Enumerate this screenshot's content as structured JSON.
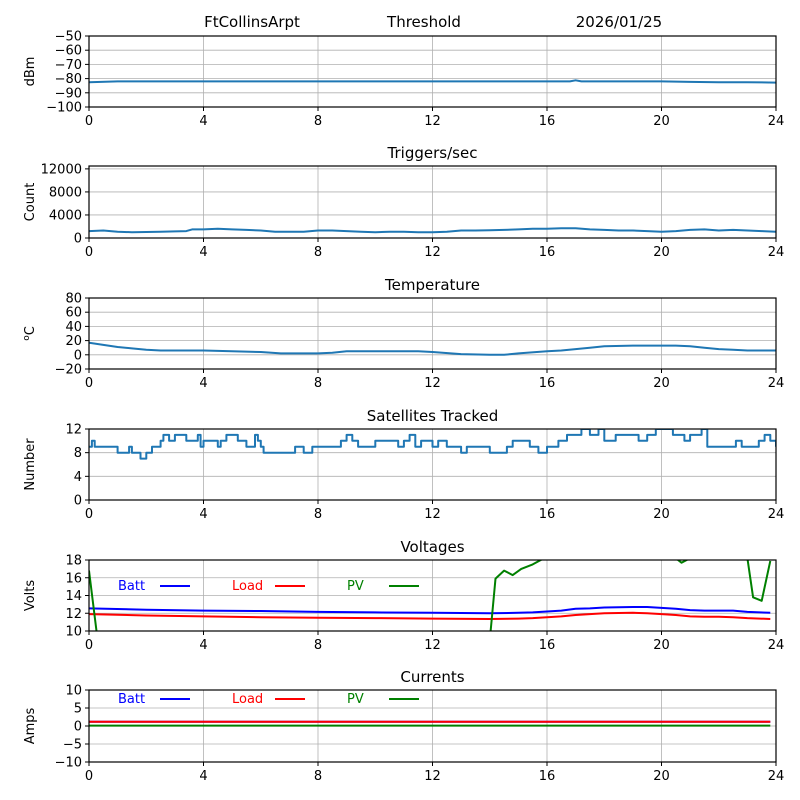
{
  "header": {
    "station": "FtCollinsArpt",
    "mode": "Threshold",
    "date": "2026/01/25"
  },
  "chart_data": [
    {
      "id": "threshold",
      "type": "line",
      "title": "",
      "xlabel": "",
      "ylabel": "dBm",
      "xlim": [
        0,
        24
      ],
      "ylim": [
        -100,
        -50
      ],
      "xticks": [
        0,
        4,
        8,
        12,
        16,
        20,
        24
      ],
      "yticks": [
        -100,
        -90,
        -80,
        -70,
        -60,
        -50
      ],
      "ytick_labels": [
        "−100",
        "−90",
        "−80",
        "−70",
        "−60",
        "−50"
      ],
      "grid": true,
      "series": [
        {
          "name": "Threshold",
          "color": "#1f77b4",
          "x": [
            0,
            1,
            2,
            3,
            4,
            5,
            6,
            7,
            8,
            9,
            10,
            11,
            12,
            13,
            14,
            15,
            16,
            16.8,
            17,
            17.2,
            18,
            19,
            20,
            21,
            22,
            23,
            24
          ],
          "values": [
            -82.5,
            -82,
            -82,
            -82,
            -82,
            -82,
            -82,
            -82,
            -82,
            -82,
            -82,
            -82,
            -82,
            -82,
            -82,
            -82,
            -82,
            -82,
            -81.2,
            -82,
            -82,
            -82,
            -82,
            -82.3,
            -82.5,
            -82.5,
            -82.8
          ]
        }
      ]
    },
    {
      "id": "triggers",
      "type": "line",
      "title": "Triggers/sec",
      "xlabel": "",
      "ylabel": "Count",
      "xlim": [
        0,
        24
      ],
      "ylim": [
        0,
        12500
      ],
      "xticks": [
        0,
        4,
        8,
        12,
        16,
        20,
        24
      ],
      "yticks": [
        0,
        4000,
        8000,
        12000
      ],
      "ytick_labels": [
        "0",
        "4000",
        "8000",
        "12000"
      ],
      "grid": true,
      "series": [
        {
          "name": "Triggers",
          "color": "#1f77b4",
          "x": [
            0,
            0.5,
            1,
            1.5,
            2,
            2.5,
            3,
            3.4,
            3.6,
            4,
            4.5,
            5,
            5.5,
            6,
            6.5,
            7,
            7.5,
            8,
            8.5,
            9,
            9.5,
            10,
            10.5,
            11,
            11.5,
            12,
            12.5,
            13,
            13.5,
            14,
            14.5,
            15,
            15.5,
            16,
            16.5,
            17,
            17.5,
            18,
            18.5,
            19,
            19.5,
            20,
            20.5,
            21,
            21.5,
            22,
            22.5,
            23,
            23.5,
            24
          ],
          "values": [
            1200,
            1300,
            1100,
            1000,
            1050,
            1100,
            1150,
            1200,
            1500,
            1500,
            1600,
            1500,
            1400,
            1300,
            1100,
            1100,
            1100,
            1300,
            1300,
            1200,
            1100,
            1000,
            1100,
            1100,
            1000,
            1000,
            1100,
            1300,
            1300,
            1350,
            1400,
            1500,
            1600,
            1600,
            1700,
            1700,
            1500,
            1400,
            1300,
            1300,
            1200,
            1100,
            1200,
            1400,
            1500,
            1300,
            1400,
            1300,
            1200,
            1100
          ]
        }
      ]
    },
    {
      "id": "temperature",
      "type": "line",
      "title": "Temperature",
      "xlabel": "",
      "ylabel": "oC",
      "xlim": [
        0,
        24
      ],
      "ylim": [
        -20,
        80
      ],
      "xticks": [
        0,
        4,
        8,
        12,
        16,
        20,
        24
      ],
      "yticks": [
        -20,
        0,
        20,
        40,
        60,
        80
      ],
      "ytick_labels": [
        "−20",
        "0",
        "20",
        "40",
        "60",
        "80"
      ],
      "grid": true,
      "series": [
        {
          "name": "Temperature",
          "color": "#1f77b4",
          "x": [
            0,
            0.5,
            1,
            1.5,
            2,
            2.5,
            3,
            4,
            5,
            6,
            6.7,
            7,
            8,
            8.5,
            9,
            10,
            11,
            11.5,
            12,
            13,
            14,
            14.5,
            15,
            16,
            16.5,
            17,
            17.5,
            18,
            19,
            20,
            20.5,
            21,
            21.5,
            22,
            22.5,
            23,
            24
          ],
          "values": [
            17,
            14,
            11,
            9,
            7,
            6,
            6,
            6,
            5,
            4,
            2,
            2,
            2,
            3,
            5,
            5,
            5,
            5,
            4,
            1,
            0,
            0,
            2,
            5,
            6,
            8,
            10,
            12,
            13,
            13,
            13,
            12,
            10,
            8,
            7,
            6,
            6
          ]
        }
      ]
    },
    {
      "id": "satellites",
      "type": "line",
      "title": "Satellites Tracked",
      "xlabel": "",
      "ylabel": "Number",
      "xlim": [
        0,
        24
      ],
      "ylim": [
        0,
        12
      ],
      "xticks": [
        0,
        4,
        8,
        12,
        16,
        20,
        24
      ],
      "yticks": [
        0,
        4,
        8,
        12
      ],
      "ytick_labels": [
        "0",
        "4",
        "8",
        "12"
      ],
      "grid": true,
      "series": [
        {
          "name": "Satellites",
          "color": "#1f77b4",
          "step": true,
          "x": [
            0,
            0.1,
            0.2,
            0.4,
            1.0,
            1.4,
            1.5,
            1.6,
            1.8,
            2.0,
            2.2,
            2.5,
            2.6,
            2.8,
            3.0,
            3.4,
            3.8,
            3.9,
            4.0,
            4.5,
            4.6,
            4.8,
            5.2,
            5.5,
            5.8,
            5.9,
            6.0,
            6.1,
            6.2,
            7.0,
            7.2,
            7.5,
            7.8,
            8.4,
            8.8,
            9.0,
            9.2,
            9.4,
            9.7,
            10.0,
            10.4,
            10.8,
            11.0,
            11.2,
            11.4,
            11.6,
            12.0,
            12.2,
            12.5,
            13.0,
            13.2,
            13.6,
            14.0,
            14.6,
            14.8,
            15.0,
            15.4,
            15.7,
            16.0,
            16.4,
            16.7,
            17.0,
            17.2,
            17.5,
            17.8,
            18.0,
            18.4,
            19.2,
            19.5,
            19.8,
            20.0,
            20.4,
            20.8,
            21.0,
            21.4,
            21.6,
            22.0,
            22.6,
            22.8,
            23.0,
            23.4,
            23.6,
            23.8,
            24
          ],
          "values": [
            9,
            10,
            9,
            9,
            8,
            9,
            8,
            8,
            7,
            8,
            9,
            10,
            11,
            10,
            11,
            10,
            11,
            9,
            10,
            9,
            10,
            11,
            10,
            9,
            11,
            10,
            9,
            8,
            8,
            8,
            9,
            8,
            9,
            9,
            10,
            11,
            10,
            9,
            9,
            10,
            10,
            9,
            10,
            11,
            9,
            10,
            9,
            10,
            9,
            8,
            9,
            9,
            8,
            9,
            10,
            10,
            9,
            8,
            9,
            10,
            11,
            11,
            12,
            11,
            12,
            10,
            11,
            10,
            11,
            12,
            12,
            11,
            10,
            11,
            12,
            9,
            9,
            10,
            9,
            9,
            10,
            11,
            10,
            9
          ]
        }
      ]
    },
    {
      "id": "voltages",
      "type": "line",
      "title": "Voltages",
      "xlabel": "",
      "ylabel": "Volts",
      "xlim": [
        0,
        24
      ],
      "ylim": [
        10,
        18
      ],
      "xticks": [
        0,
        4,
        8,
        12,
        16,
        20,
        24
      ],
      "yticks": [
        10,
        12,
        14,
        16,
        18
      ],
      "ytick_labels": [
        "10",
        "12",
        "14",
        "16",
        "18"
      ],
      "grid": true,
      "legend": [
        {
          "label": "Batt",
          "color": "#0000ff"
        },
        {
          "label": "Load",
          "color": "#ff0000"
        },
        {
          "label": "PV",
          "color": "#008000"
        }
      ],
      "legend_placement": "top-inside",
      "series": [
        {
          "name": "Batt",
          "color": "#0000ff",
          "x": [
            0,
            2,
            4,
            6,
            8,
            10,
            12,
            14,
            15,
            15.5,
            16,
            16.5,
            17,
            17.5,
            18,
            19,
            19.5,
            20,
            20.5,
            21,
            21.5,
            22,
            22.5,
            23,
            23.8
          ],
          "values": [
            12.55,
            12.4,
            12.3,
            12.25,
            12.15,
            12.1,
            12.05,
            12.0,
            12.05,
            12.1,
            12.2,
            12.3,
            12.5,
            12.55,
            12.65,
            12.7,
            12.7,
            12.6,
            12.5,
            12.35,
            12.3,
            12.3,
            12.3,
            12.15,
            12.05
          ]
        },
        {
          "name": "Load",
          "color": "#ff0000",
          "x": [
            0,
            2,
            4,
            6,
            8,
            10,
            12,
            14,
            15,
            15.5,
            16,
            16.5,
            17,
            17.5,
            18,
            19,
            19.5,
            20,
            20.5,
            21,
            21.5,
            22,
            22.5,
            23,
            23.8
          ],
          "values": [
            11.9,
            11.75,
            11.65,
            11.55,
            11.5,
            11.45,
            11.4,
            11.35,
            11.4,
            11.45,
            11.55,
            11.65,
            11.8,
            11.9,
            12.0,
            12.05,
            12.0,
            11.9,
            11.8,
            11.65,
            11.6,
            11.6,
            11.55,
            11.45,
            11.35
          ]
        },
        {
          "name": "PV",
          "color": "#008000",
          "x": [
            0,
            0.3,
            0.3,
            14.0,
            14.0,
            14.2,
            14.5,
            14.8,
            15.1,
            15.5,
            15.9,
            20.5,
            20.7,
            21.0,
            23.0,
            23.2,
            23.5,
            23.8
          ],
          "values": [
            16.8,
            9.0,
            null,
            null,
            9.0,
            15.9,
            16.8,
            16.3,
            17.0,
            17.5,
            18.2,
            18.2,
            17.7,
            18.2,
            18.2,
            13.8,
            13.4,
            17.9
          ]
        }
      ]
    },
    {
      "id": "currents",
      "type": "line",
      "title": "Currents",
      "xlabel": "",
      "ylabel": "Amps",
      "xlim": [
        0,
        24
      ],
      "ylim": [
        -10,
        10
      ],
      "xticks": [
        0,
        4,
        8,
        12,
        16,
        20,
        24
      ],
      "yticks": [
        -10,
        -5,
        0,
        5,
        10
      ],
      "ytick_labels": [
        "−10",
        "−5",
        "0",
        "5",
        "10"
      ],
      "grid": true,
      "legend": [
        {
          "label": "Batt",
          "color": "#0000ff"
        },
        {
          "label": "Load",
          "color": "#ff0000"
        },
        {
          "label": "PV",
          "color": "#008000"
        }
      ],
      "legend_placement": "top-inside",
      "series": [
        {
          "name": "Batt",
          "color": "#0000ff",
          "x": [
            0,
            23.8
          ],
          "values": [
            1.2,
            1.2
          ]
        },
        {
          "name": "Load",
          "color": "#ff0000",
          "x": [
            0,
            23.8
          ],
          "values": [
            1.2,
            1.2
          ]
        },
        {
          "name": "PV",
          "color": "#008000",
          "x": [
            0,
            23.8
          ],
          "values": [
            0.1,
            0.1
          ]
        }
      ]
    }
  ]
}
